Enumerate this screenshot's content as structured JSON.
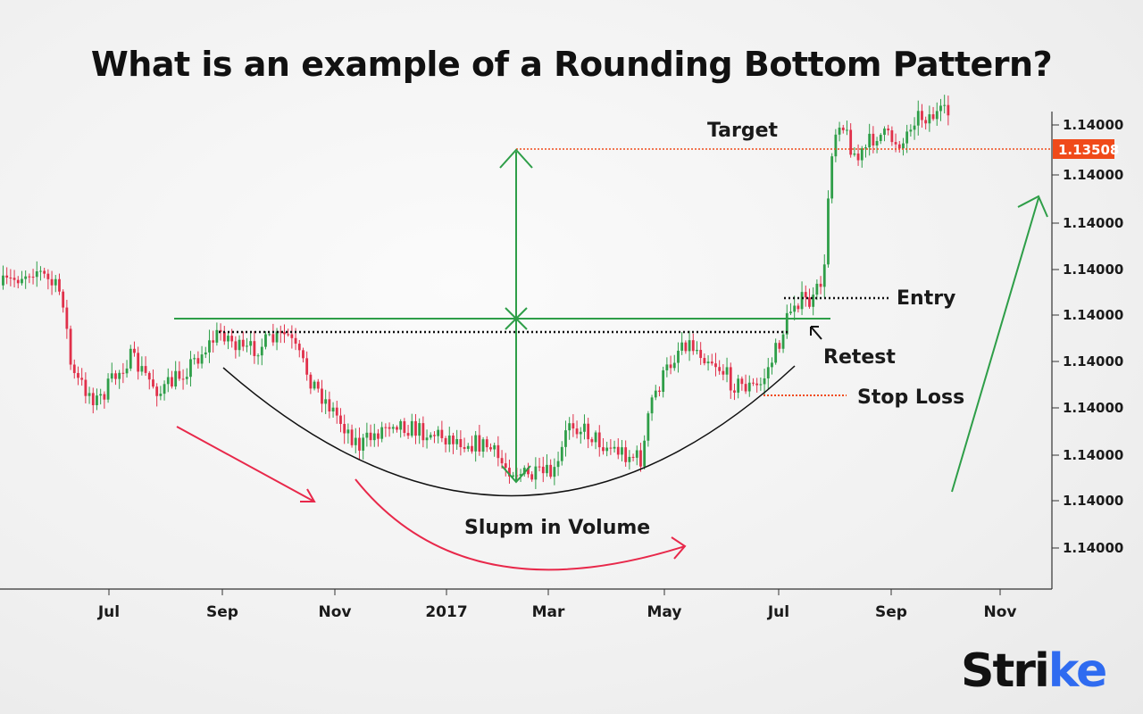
{
  "title": "What is an example of a Rounding Bottom Pattern?",
  "logo": {
    "text": "Strike",
    "accent_color": "#2f6bf0"
  },
  "chart_data": {
    "type": "candlestick",
    "title": "What is an example of a Rounding Bottom Pattern?",
    "x_tick_labels": [
      "Jul",
      "Sep",
      "Nov",
      "2017",
      "Mar",
      "May",
      "Jul",
      "Sep",
      "Nov"
    ],
    "y_tick_labels": [
      "1.14000",
      "1.14000",
      "1.14000",
      "1.14000",
      "1.14000",
      "1.14000",
      "1.14000",
      "1.14000",
      "1.14000",
      "1.14000"
    ],
    "price_marker": {
      "label": "1.13508",
      "color": "#f04a1a"
    },
    "grid": false,
    "colors": {
      "up": "#2e9e48",
      "down": "#e0304a",
      "resistance": "#2e9e48",
      "target": "#f04a1a",
      "volume_arrow": "#e8284a",
      "trend_arrow": "#2e9e48"
    },
    "price_path": [
      {
        "date": "2016-05-05",
        "level": 63.6
      },
      {
        "date": "2016-05-22",
        "level": 67.3
      },
      {
        "date": "2016-06-06",
        "level": 61.7
      },
      {
        "date": "2016-06-11",
        "level": 44.9
      },
      {
        "date": "2016-06-25",
        "level": 39.3
      },
      {
        "date": "2016-07-12",
        "level": 48.6
      },
      {
        "date": "2016-07-29",
        "level": 41.1
      },
      {
        "date": "2016-08-13",
        "level": 46.7
      },
      {
        "date": "2016-08-31",
        "level": 54.2
      },
      {
        "date": "2016-09-11",
        "level": 49.5
      },
      {
        "date": "2016-10-05",
        "level": 53.3
      },
      {
        "date": "2016-10-19",
        "level": 43.0
      },
      {
        "date": "2016-11-13",
        "level": 29.9
      },
      {
        "date": "2016-12-01",
        "level": 35.5
      },
      {
        "date": "2016-12-11",
        "level": 33.6
      },
      {
        "date": "2016-12-31",
        "level": 31.8
      },
      {
        "date": "2017-01-21",
        "level": 29.9
      },
      {
        "date": "2017-01-29",
        "level": 26.2
      },
      {
        "date": "2017-02-12",
        "level": 23.4
      },
      {
        "date": "2017-02-27",
        "level": 24.3
      },
      {
        "date": "2017-03-06",
        "level": 35.5
      },
      {
        "date": "2017-03-26",
        "level": 29.9
      },
      {
        "date": "2017-04-14",
        "level": 27.1
      },
      {
        "date": "2017-04-19",
        "level": 39.3
      },
      {
        "date": "2017-05-06",
        "level": 52.3
      },
      {
        "date": "2017-05-23",
        "level": 47.7
      },
      {
        "date": "2017-06-02",
        "level": 43.0
      },
      {
        "date": "2017-06-16",
        "level": 42.1
      },
      {
        "date": "2017-06-26",
        "level": 50.5
      },
      {
        "date": "2017-07-05",
        "level": 60.7
      },
      {
        "date": "2017-07-15",
        "level": 59.8
      },
      {
        "date": "2017-07-22",
        "level": 67.3
      },
      {
        "date": "2017-07-24",
        "level": 89.7
      },
      {
        "date": "2017-07-29",
        "level": 99.0
      },
      {
        "date": "2017-08-08",
        "level": 89.7
      },
      {
        "date": "2017-08-18",
        "level": 95.3
      },
      {
        "date": "2017-09-02",
        "level": 93.5
      },
      {
        "date": "2017-09-07",
        "level": 99.0
      },
      {
        "date": "2017-09-26",
        "level": 99.4
      }
    ],
    "annotations": {
      "target": "Target",
      "entry": "Entry",
      "retest": "Retest",
      "stop_loss": "Stop Loss",
      "volume": "Slupm in Volume"
    }
  }
}
